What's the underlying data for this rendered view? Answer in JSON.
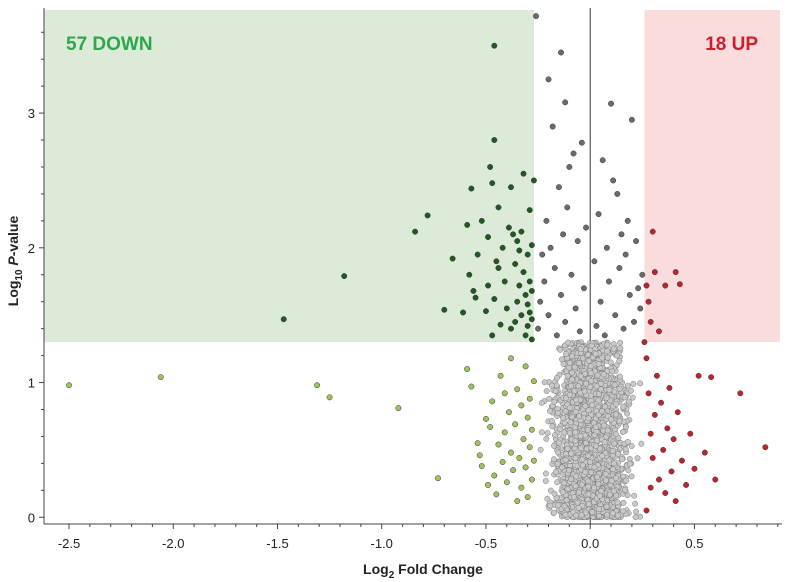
{
  "chart_data": {
    "type": "scatter",
    "title": "",
    "xlabel": {
      "main": "Log",
      "sub": "2",
      "rest": " Fold Change"
    },
    "ylabel": {
      "main": "Log",
      "sub": "10",
      "italic": " P",
      "rest": "-value"
    },
    "xlim": [
      -2.62,
      0.92
    ],
    "ylim": [
      -0.05,
      3.78
    ],
    "x_ticks": [
      -2.5,
      -2.0,
      -1.5,
      -1.0,
      -0.5,
      0.0,
      0.5
    ],
    "x_tick_labels": [
      "-2.5",
      "-2.0",
      "-1.5",
      "-1.0",
      "-0.5",
      "0.0",
      "0.5"
    ],
    "y_ticks": [
      0,
      1,
      2,
      3
    ],
    "y_tick_labels": [
      "0",
      "1",
      "2",
      "3"
    ],
    "zero_line": true,
    "regions": {
      "down": {
        "x_max": -0.27,
        "y_min": 1.3,
        "color": "#dcebd8"
      },
      "up": {
        "x_min": 0.26,
        "y_min": 1.3,
        "color": "#fbdcdc"
      }
    },
    "annotations": {
      "down_label": "57 DOWN",
      "down_color": "#2ca84a",
      "up_label": "18 UP",
      "up_color": "#cc1f2b"
    },
    "series_colors": {
      "down_significant": "#1f5a1f",
      "down_nonsignificant": "#9fc25c",
      "neutral_significant": "#6b6b6b",
      "neutral": "#c8c8c8",
      "up": "#c0232b"
    },
    "series": [
      {
        "name": "",
        "color": "#1f5a1f",
        "points": [
          [
            -1.47,
            1.47
          ],
          [
            -1.18,
            1.79
          ],
          [
            -0.84,
            2.12
          ],
          [
            -0.78,
            2.24
          ],
          [
            -0.7,
            1.54
          ],
          [
            -0.66,
            1.92
          ],
          [
            -0.61,
            1.52
          ],
          [
            -0.59,
            2.17
          ],
          [
            -0.58,
            1.8
          ],
          [
            -0.57,
            2.44
          ],
          [
            -0.56,
            1.68
          ],
          [
            -0.55,
            1.63
          ],
          [
            -0.54,
            1.95
          ],
          [
            -0.52,
            2.2
          ],
          [
            -0.5,
            1.53
          ],
          [
            -0.49,
            2.08
          ],
          [
            -0.49,
            1.72
          ],
          [
            -0.48,
            2.6
          ],
          [
            -0.47,
            2.48
          ],
          [
            -0.47,
            1.35
          ],
          [
            -0.46,
            3.5
          ],
          [
            -0.46,
            2.8
          ],
          [
            -0.46,
            1.62
          ],
          [
            -0.45,
            1.9
          ],
          [
            -0.44,
            1.85
          ],
          [
            -0.44,
            2.3
          ],
          [
            -0.43,
            1.43
          ],
          [
            -0.42,
            2.0
          ],
          [
            -0.41,
            1.75
          ],
          [
            -0.4,
            1.55
          ],
          [
            -0.39,
            2.15
          ],
          [
            -0.38,
            2.45
          ],
          [
            -0.38,
            1.4
          ],
          [
            -0.37,
            2.1
          ],
          [
            -0.36,
            1.88
          ],
          [
            -0.36,
            1.45
          ],
          [
            -0.35,
            1.6
          ],
          [
            -0.35,
            2.05
          ],
          [
            -0.34,
            1.98
          ],
          [
            -0.34,
            1.72
          ],
          [
            -0.33,
            1.5
          ],
          [
            -0.33,
            2.12
          ],
          [
            -0.32,
            1.82
          ],
          [
            -0.32,
            2.55
          ],
          [
            -0.31,
            1.35
          ],
          [
            -0.31,
            1.65
          ],
          [
            -0.3,
            1.95
          ],
          [
            -0.3,
            1.58
          ],
          [
            -0.3,
            1.42
          ],
          [
            -0.29,
            2.28
          ],
          [
            -0.29,
            1.75
          ],
          [
            -0.29,
            1.52
          ],
          [
            -0.28,
            1.68
          ],
          [
            -0.28,
            2.02
          ],
          [
            -0.28,
            1.32
          ],
          [
            -0.28,
            1.47
          ],
          [
            -0.27,
            2.5
          ]
        ]
      },
      {
        "name": "",
        "color": "#9fc25c",
        "points": [
          [
            -2.5,
            0.98
          ],
          [
            -2.06,
            1.04
          ],
          [
            -1.31,
            0.98
          ],
          [
            -1.25,
            0.89
          ],
          [
            -0.92,
            0.81
          ],
          [
            -0.73,
            0.29
          ],
          [
            -0.59,
            1.1
          ],
          [
            -0.57,
            0.97
          ],
          [
            -0.54,
            0.55
          ],
          [
            -0.53,
            0.46
          ],
          [
            -0.52,
            0.38
          ],
          [
            -0.5,
            0.73
          ],
          [
            -0.49,
            0.24
          ],
          [
            -0.48,
            0.67
          ],
          [
            -0.47,
            0.86
          ],
          [
            -0.46,
            0.31
          ],
          [
            -0.45,
            0.17
          ],
          [
            -0.44,
            0.54
          ],
          [
            -0.43,
            1.05
          ],
          [
            -0.42,
            0.41
          ],
          [
            -0.41,
            0.63
          ],
          [
            -0.41,
            0.92
          ],
          [
            -0.4,
            0.26
          ],
          [
            -0.39,
            0.78
          ],
          [
            -0.38,
            0.48
          ],
          [
            -0.38,
            1.18
          ],
          [
            -0.37,
            0.35
          ],
          [
            -0.36,
            0.69
          ],
          [
            -0.35,
            0.12
          ],
          [
            -0.35,
            0.95
          ],
          [
            -0.34,
            0.44
          ],
          [
            -0.33,
            0.83
          ],
          [
            -0.33,
            0.22
          ],
          [
            -0.32,
            0.58
          ],
          [
            -0.31,
            1.12
          ],
          [
            -0.31,
            0.37
          ],
          [
            -0.3,
            0.74
          ],
          [
            -0.3,
            0.15
          ],
          [
            -0.29,
            0.52
          ],
          [
            -0.29,
            0.88
          ],
          [
            -0.28,
            0.28
          ],
          [
            -0.28,
            0.65
          ],
          [
            -0.27,
            0.42
          ],
          [
            -0.27,
            1.01
          ]
        ]
      },
      {
        "name": "",
        "color": "#6b6b6b",
        "points": [
          [
            -0.25,
            1.4
          ],
          [
            -0.24,
            1.6
          ],
          [
            -0.23,
            1.95
          ],
          [
            -0.22,
            1.75
          ],
          [
            -0.21,
            2.2
          ],
          [
            -0.2,
            1.5
          ],
          [
            -0.2,
            3.25
          ],
          [
            -0.19,
            2.0
          ],
          [
            -0.18,
            2.9
          ],
          [
            -0.17,
            1.85
          ],
          [
            -0.16,
            1.35
          ],
          [
            -0.15,
            2.45
          ],
          [
            -0.14,
            1.65
          ],
          [
            -0.13,
            2.1
          ],
          [
            -0.12,
            1.45
          ],
          [
            -0.11,
            2.3
          ],
          [
            -0.1,
            2.6
          ],
          [
            -0.09,
            1.8
          ],
          [
            -0.08,
            2.7
          ],
          [
            -0.07,
            1.55
          ],
          [
            -0.06,
            2.05
          ],
          [
            -0.05,
            1.38
          ],
          [
            -0.04,
            2.78
          ],
          [
            -0.03,
            1.7
          ],
          [
            -0.02,
            2.15
          ],
          [
            0.02,
            1.9
          ],
          [
            0.03,
            1.42
          ],
          [
            0.04,
            2.25
          ],
          [
            0.05,
            1.6
          ],
          [
            0.06,
            2.65
          ],
          [
            0.07,
            1.35
          ],
          [
            0.08,
            2.0
          ],
          [
            0.09,
            1.75
          ],
          [
            0.1,
            3.07
          ],
          [
            0.11,
            2.5
          ],
          [
            0.12,
            1.5
          ],
          [
            0.13,
            2.4
          ],
          [
            0.14,
            1.85
          ],
          [
            0.15,
            2.1
          ],
          [
            0.16,
            1.4
          ],
          [
            0.17,
            1.95
          ],
          [
            0.18,
            2.2
          ],
          [
            0.19,
            1.65
          ],
          [
            0.2,
            2.95
          ],
          [
            0.21,
            1.45
          ],
          [
            0.22,
            2.05
          ],
          [
            0.23,
            1.7
          ],
          [
            0.24,
            1.55
          ],
          [
            0.25,
            1.8
          ],
          [
            -0.12,
            3.08
          ],
          [
            -0.14,
            3.45
          ],
          [
            -0.26,
            3.72
          ]
        ]
      },
      {
        "name": "",
        "color": "#c8c8c8",
        "points": []
      },
      {
        "name": "",
        "color": "#c0232b",
        "points": [
          [
            0.27,
            1.72
          ],
          [
            0.28,
            1.6
          ],
          [
            0.29,
            1.45
          ],
          [
            0.3,
            2.12
          ],
          [
            0.31,
            1.82
          ],
          [
            0.33,
            1.38
          ],
          [
            0.36,
            1.72
          ],
          [
            0.41,
            1.82
          ],
          [
            0.43,
            1.73
          ],
          [
            0.26,
            1.3
          ],
          [
            0.27,
            1.18
          ],
          [
            0.28,
            0.92
          ],
          [
            0.29,
            0.62
          ],
          [
            0.3,
            0.44
          ],
          [
            0.31,
            0.76
          ],
          [
            0.32,
            1.05
          ],
          [
            0.33,
            0.28
          ],
          [
            0.34,
            0.85
          ],
          [
            0.35,
            0.5
          ],
          [
            0.36,
            0.18
          ],
          [
            0.37,
            0.66
          ],
          [
            0.38,
            0.96
          ],
          [
            0.39,
            0.34
          ],
          [
            0.4,
            0.58
          ],
          [
            0.41,
            0.12
          ],
          [
            0.42,
            0.78
          ],
          [
            0.44,
            0.42
          ],
          [
            0.46,
            0.24
          ],
          [
            0.48,
            0.62
          ],
          [
            0.5,
            0.36
          ],
          [
            0.52,
            1.05
          ],
          [
            0.55,
            0.48
          ],
          [
            0.58,
            1.04
          ],
          [
            0.6,
            0.28
          ],
          [
            0.72,
            0.92
          ],
          [
            0.84,
            0.52
          ],
          [
            0.27,
            0.05
          ],
          [
            0.29,
            0.22
          ]
        ]
      }
    ],
    "neutral_cloud": {
      "color": "#c8c8c8",
      "count": 1900,
      "x_range": [
        -0.26,
        0.26
      ],
      "y_range": [
        0.0,
        1.3
      ]
    }
  }
}
